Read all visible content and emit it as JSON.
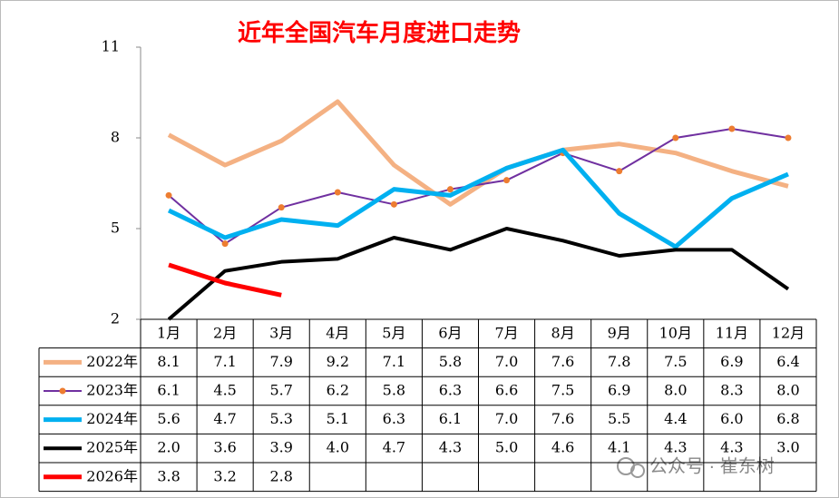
{
  "chart_data": {
    "type": "line",
    "title": "近年全国汽车月度进口走势",
    "categories": [
      "1月",
      "2月",
      "3月",
      "4月",
      "5月",
      "6月",
      "7月",
      "8月",
      "9月",
      "10月",
      "11月",
      "12月"
    ],
    "ylim": [
      2,
      11
    ],
    "yticks": [
      2,
      5,
      8,
      11
    ],
    "grid": false,
    "series": [
      {
        "name": "2022年",
        "color": "#F4B183",
        "width": 5,
        "values": [
          8.1,
          7.1,
          7.9,
          9.2,
          7.1,
          5.8,
          7.0,
          7.6,
          7.8,
          7.5,
          6.9,
          6.4
        ],
        "value_labels": [
          "8.1",
          "7.1",
          "7.9",
          "9.2",
          "7.1",
          "5.8",
          "7.0",
          "7.6",
          "7.8",
          "7.5",
          "6.9",
          "6.4"
        ]
      },
      {
        "name": "2023年",
        "color": "#7030A0",
        "width": 2,
        "marker_color": "#ED7D31",
        "values": [
          6.1,
          4.5,
          5.7,
          6.2,
          5.8,
          6.3,
          6.6,
          7.5,
          6.9,
          8.0,
          8.3,
          8.0
        ],
        "value_labels": [
          "6.1",
          "4.5",
          "5.7",
          "6.2",
          "5.8",
          "6.3",
          "6.6",
          "7.5",
          "6.9",
          "8.0",
          "8.3",
          "8.0"
        ]
      },
      {
        "name": "2024年",
        "color": "#00B0F0",
        "width": 5,
        "values": [
          5.6,
          4.7,
          5.3,
          5.1,
          6.3,
          6.1,
          7.0,
          7.6,
          5.5,
          4.4,
          6.0,
          6.8
        ],
        "value_labels": [
          "5.6",
          "4.7",
          "5.3",
          "5.1",
          "6.3",
          "6.1",
          "7.0",
          "7.6",
          "5.5",
          "4.4",
          "6.0",
          "6.8"
        ]
      },
      {
        "name": "2025年",
        "color": "#000000",
        "width": 4,
        "values": [
          2.0,
          3.6,
          3.9,
          4.0,
          4.7,
          4.3,
          5.0,
          4.6,
          4.1,
          4.3,
          4.3,
          3.0
        ],
        "value_labels": [
          "2.0",
          "3.6",
          "3.9",
          "4.0",
          "4.7",
          "4.3",
          "5.0",
          "4.6",
          "4.1",
          "4.3",
          "4.3",
          "3.0"
        ]
      },
      {
        "name": "2026年",
        "color": "#FF0000",
        "width": 5,
        "values": [
          3.8,
          3.2,
          2.8,
          null,
          null,
          null,
          null,
          null,
          null,
          null,
          null,
          null
        ],
        "value_labels": [
          "3.8",
          "3.2",
          "2.8",
          null,
          null,
          null,
          null,
          null,
          null,
          null,
          null,
          null
        ]
      }
    ],
    "watermark": "公众号 · 崔东树"
  }
}
